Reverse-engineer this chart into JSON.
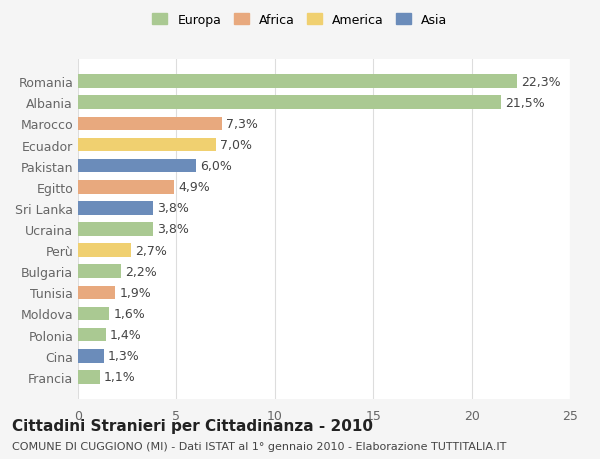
{
  "categories": [
    "Romania",
    "Albania",
    "Marocco",
    "Ecuador",
    "Pakistan",
    "Egitto",
    "Sri Lanka",
    "Ucraina",
    "Perù",
    "Bulgaria",
    "Tunisia",
    "Moldova",
    "Polonia",
    "Cina",
    "Francia"
  ],
  "values": [
    22.3,
    21.5,
    7.3,
    7.0,
    6.0,
    4.9,
    3.8,
    3.8,
    2.7,
    2.2,
    1.9,
    1.6,
    1.4,
    1.3,
    1.1
  ],
  "continents": [
    "Europa",
    "Europa",
    "Africa",
    "America",
    "Asia",
    "Africa",
    "Asia",
    "Europa",
    "America",
    "Europa",
    "Africa",
    "Europa",
    "Europa",
    "Asia",
    "Europa"
  ],
  "colors": {
    "Europa": "#aac992",
    "Africa": "#e8a97e",
    "America": "#f0d070",
    "Asia": "#6b8cba"
  },
  "legend_colors": {
    "Europa": "#aac992",
    "Africa": "#e8a97e",
    "America": "#f0d070",
    "Asia": "#6b8cba"
  },
  "xlim": [
    0,
    25
  ],
  "xticks": [
    0,
    5,
    10,
    15,
    20,
    25
  ],
  "title": "Cittadini Stranieri per Cittadinanza - 2010",
  "subtitle": "COMUNE DI CUGGIONO (MI) - Dati ISTAT al 1° gennaio 2010 - Elaborazione TUTTITALIA.IT",
  "background_color": "#f5f5f5",
  "bar_background": "#ffffff",
  "label_fontsize": 9,
  "title_fontsize": 11,
  "subtitle_fontsize": 8
}
